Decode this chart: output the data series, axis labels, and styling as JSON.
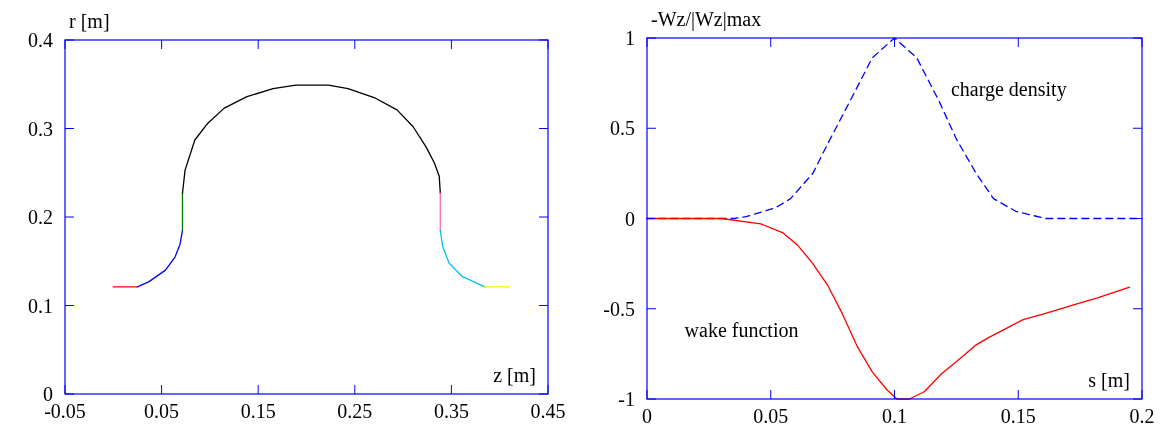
{
  "chart_data": [
    {
      "type": "line",
      "xlabel": "z [m]",
      "ylabel": "r [m]",
      "xlim": [
        -0.05,
        0.45
      ],
      "ylim": [
        0,
        0.4
      ],
      "xticks": [
        -0.05,
        0.05,
        0.15,
        0.25,
        0.35,
        0.45
      ],
      "yticks": [
        0,
        0.1,
        0.2,
        0.3,
        0.4
      ],
      "series": [
        {
          "color": "#ff0000",
          "x": [
            0,
            0.025
          ],
          "values": [
            0.121,
            0.121
          ]
        },
        {
          "color": "#0000ff",
          "x": [
            0.025,
            0.037,
            0.054,
            0.064,
            0.069,
            0.0716
          ],
          "values": [
            0.121,
            0.127,
            0.14,
            0.155,
            0.169,
            0.185
          ]
        },
        {
          "color": "#008000",
          "x": [
            0.0716,
            0.0716
          ],
          "values": [
            0.185,
            0.227
          ]
        },
        {
          "color": "#000000",
          "x": [
            0.0716,
            0.0743,
            0.0844,
            0.0979,
            0.1148,
            0.1384,
            0.1654,
            0.189,
            0.2227,
            0.243,
            0.27,
            0.2937,
            0.3104,
            0.3239,
            0.3324,
            0.3374,
            0.3385
          ],
          "values": [
            0.227,
            0.253,
            0.287,
            0.306,
            0.323,
            0.336,
            0.345,
            0.349,
            0.349,
            0.345,
            0.335,
            0.321,
            0.302,
            0.279,
            0.261,
            0.246,
            0.227
          ]
        },
        {
          "color": "#ff69b4",
          "x": [
            0.3385,
            0.3385
          ],
          "values": [
            0.227,
            0.185
          ]
        },
        {
          "color": "#00bfff",
          "x": [
            0.3385,
            0.3409,
            0.3476,
            0.361,
            0.3846
          ],
          "values": [
            0.185,
            0.167,
            0.148,
            0.133,
            0.121
          ]
        },
        {
          "color": "#ffee00",
          "x": [
            0.3846,
            0.41
          ],
          "values": [
            0.121,
            0.121
          ]
        }
      ]
    },
    {
      "type": "line",
      "xlabel": "s [m]",
      "ylabel": "-Wz/|Wz|max",
      "xlim": [
        0,
        0.2
      ],
      "ylim": [
        -1,
        1
      ],
      "xticks": [
        0,
        0.05,
        0.1,
        0.15,
        0.2
      ],
      "yticks": [
        -1,
        -0.5,
        0,
        0.5,
        1
      ],
      "series": [
        {
          "name": "charge density",
          "color": "#0000ff",
          "line_style": "dashed",
          "x": [
            0,
            0.035,
            0.04,
            0.052,
            0.058,
            0.067,
            0.074,
            0.082,
            0.091,
            0.1,
            0.109,
            0.118,
            0.125,
            0.133,
            0.14,
            0.149,
            0.161,
            0.2
          ],
          "values": [
            0,
            0,
            0.01,
            0.06,
            0.11,
            0.25,
            0.44,
            0.65,
            0.89,
            1,
            0.89,
            0.65,
            0.44,
            0.25,
            0.11,
            0.04,
            0,
            0
          ]
        },
        {
          "name": "wake function",
          "color": "#ff0000",
          "line_style": "solid",
          "x": [
            0,
            0.03,
            0.046,
            0.055,
            0.061,
            0.067,
            0.073,
            0.079,
            0.085,
            0.091,
            0.097,
            0.101,
            0.106,
            0.112,
            0.119,
            0.127,
            0.133,
            0.138,
            0.145,
            0.152,
            0.16,
            0.172,
            0.182,
            0.195
          ],
          "values": [
            0,
            0,
            -0.03,
            -0.08,
            -0.15,
            -0.25,
            -0.37,
            -0.53,
            -0.71,
            -0.85,
            -0.95,
            -1,
            -1,
            -0.96,
            -0.86,
            -0.77,
            -0.7,
            -0.66,
            -0.61,
            -0.56,
            -0.53,
            -0.48,
            -0.44,
            -0.38
          ]
        }
      ]
    }
  ]
}
